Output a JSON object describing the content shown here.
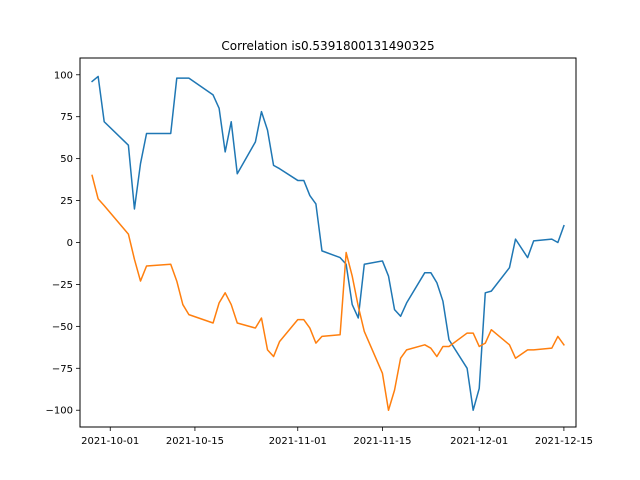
{
  "chart_data": {
    "type": "line",
    "title": "Correlation is0.5391800131490325",
    "xlabel": "",
    "ylabel": "",
    "xlim": [
      "2021-09-26",
      "2021-12-17"
    ],
    "ylim": [
      -110,
      110
    ],
    "x_ticks": [
      "2021-10-01",
      "2021-10-15",
      "2021-11-01",
      "2021-11-15",
      "2021-12-01",
      "2021-12-15"
    ],
    "y_ticks": [
      100,
      75,
      50,
      25,
      0,
      -25,
      -50,
      -75,
      -100
    ],
    "grid": false,
    "legend": "none",
    "series": [
      {
        "color": "#1f77b4",
        "points": [
          [
            "2021-09-28",
            96
          ],
          [
            "2021-09-29",
            99
          ],
          [
            "2021-09-30",
            72
          ],
          [
            "2021-10-04",
            58
          ],
          [
            "2021-10-05",
            20
          ],
          [
            "2021-10-06",
            47
          ],
          [
            "2021-10-07",
            65
          ],
          [
            "2021-10-11",
            65
          ],
          [
            "2021-10-12",
            98
          ],
          [
            "2021-10-14",
            98
          ],
          [
            "2021-10-18",
            88
          ],
          [
            "2021-10-19",
            80
          ],
          [
            "2021-10-20",
            54
          ],
          [
            "2021-10-21",
            72
          ],
          [
            "2021-10-22",
            41
          ],
          [
            "2021-10-25",
            60
          ],
          [
            "2021-10-26",
            78
          ],
          [
            "2021-10-27",
            67
          ],
          [
            "2021-10-28",
            46
          ],
          [
            "2021-10-29",
            44
          ],
          [
            "2021-11-01",
            37
          ],
          [
            "2021-11-02",
            37
          ],
          [
            "2021-11-03",
            28
          ],
          [
            "2021-11-04",
            23
          ],
          [
            "2021-11-05",
            -5
          ],
          [
            "2021-11-08",
            -9
          ],
          [
            "2021-11-09",
            -13
          ],
          [
            "2021-11-10",
            -37
          ],
          [
            "2021-11-11",
            -45
          ],
          [
            "2021-11-12",
            -13
          ],
          [
            "2021-11-15",
            -11
          ],
          [
            "2021-11-16",
            -20
          ],
          [
            "2021-11-17",
            -40
          ],
          [
            "2021-11-18",
            -44
          ],
          [
            "2021-11-19",
            -36
          ],
          [
            "2021-11-22",
            -18
          ],
          [
            "2021-11-23",
            -18
          ],
          [
            "2021-11-24",
            -24
          ],
          [
            "2021-11-25",
            -35
          ],
          [
            "2021-11-26",
            -58
          ],
          [
            "2021-11-29",
            -75
          ],
          [
            "2021-11-30",
            -100
          ],
          [
            "2021-12-01",
            -87
          ],
          [
            "2021-12-02",
            -30
          ],
          [
            "2021-12-03",
            -29
          ],
          [
            "2021-12-06",
            -15
          ],
          [
            "2021-12-07",
            2
          ],
          [
            "2021-12-09",
            -9
          ],
          [
            "2021-12-10",
            1
          ],
          [
            "2021-12-13",
            2
          ],
          [
            "2021-12-14",
            0
          ],
          [
            "2021-12-15",
            10
          ]
        ]
      },
      {
        "color": "#ff7f0e",
        "points": [
          [
            "2021-09-28",
            40
          ],
          [
            "2021-09-29",
            26
          ],
          [
            "2021-09-30",
            22
          ],
          [
            "2021-10-04",
            5
          ],
          [
            "2021-10-05",
            -10
          ],
          [
            "2021-10-06",
            -23
          ],
          [
            "2021-10-07",
            -14
          ],
          [
            "2021-10-11",
            -13
          ],
          [
            "2021-10-12",
            -23
          ],
          [
            "2021-10-13",
            -37
          ],
          [
            "2021-10-14",
            -43
          ],
          [
            "2021-10-18",
            -48
          ],
          [
            "2021-10-19",
            -36
          ],
          [
            "2021-10-20",
            -30
          ],
          [
            "2021-10-21",
            -37
          ],
          [
            "2021-10-22",
            -48
          ],
          [
            "2021-10-25",
            -51
          ],
          [
            "2021-10-26",
            -45
          ],
          [
            "2021-10-27",
            -64
          ],
          [
            "2021-10-28",
            -68
          ],
          [
            "2021-10-29",
            -59
          ],
          [
            "2021-11-01",
            -46
          ],
          [
            "2021-11-02",
            -46
          ],
          [
            "2021-11-03",
            -51
          ],
          [
            "2021-11-04",
            -60
          ],
          [
            "2021-11-05",
            -56
          ],
          [
            "2021-11-08",
            -55
          ],
          [
            "2021-11-09",
            -6
          ],
          [
            "2021-11-10",
            -20
          ],
          [
            "2021-11-11",
            -38
          ],
          [
            "2021-11-12",
            -53
          ],
          [
            "2021-11-15",
            -78
          ],
          [
            "2021-11-16",
            -100
          ],
          [
            "2021-11-17",
            -88
          ],
          [
            "2021-11-18",
            -69
          ],
          [
            "2021-11-19",
            -64
          ],
          [
            "2021-11-22",
            -61
          ],
          [
            "2021-11-23",
            -63
          ],
          [
            "2021-11-24",
            -68
          ],
          [
            "2021-11-25",
            -62
          ],
          [
            "2021-11-26",
            -62
          ],
          [
            "2021-11-29",
            -54
          ],
          [
            "2021-11-30",
            -54
          ],
          [
            "2021-12-01",
            -62
          ],
          [
            "2021-12-02",
            -60
          ],
          [
            "2021-12-03",
            -52
          ],
          [
            "2021-12-06",
            -61
          ],
          [
            "2021-12-07",
            -69
          ],
          [
            "2021-12-09",
            -64
          ],
          [
            "2021-12-10",
            -64
          ],
          [
            "2021-12-13",
            -63
          ],
          [
            "2021-12-14",
            -56
          ],
          [
            "2021-12-15",
            -61
          ]
        ]
      }
    ]
  }
}
